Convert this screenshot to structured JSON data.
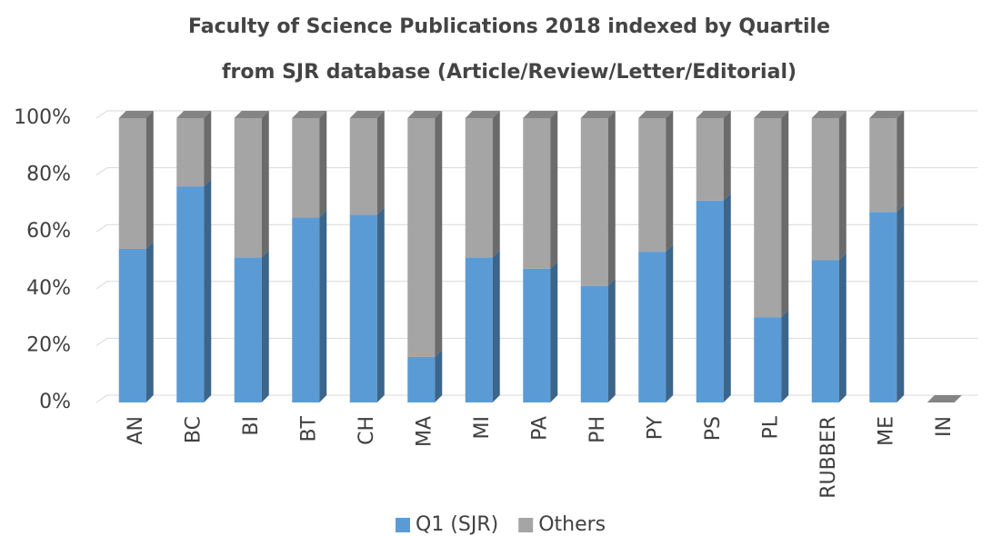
{
  "chart_data": {
    "type": "stacked_bar_3d",
    "title": "Faculty of Science Publications 2018 indexed by Quartile",
    "subtitle": "from SJR database (Article/Review/Letter/Editorial)",
    "categories": [
      "AN",
      "BC",
      "BI",
      "BT",
      "CH",
      "MA",
      "MI",
      "PA",
      "PH",
      "PY",
      "PS",
      "PL",
      "RUBBER",
      "ME",
      "IN"
    ],
    "series": [
      {
        "name": "Q1 (SJR)",
        "color": "#5b9bd5",
        "values": [
          54,
          76,
          51,
          65,
          66,
          16,
          51,
          47,
          41,
          53,
          71,
          30,
          50,
          67,
          0
        ]
      },
      {
        "name": "Others",
        "color": "#a5a5a5",
        "values": [
          46,
          24,
          49,
          35,
          34,
          84,
          49,
          53,
          59,
          47,
          29,
          70,
          50,
          33,
          0
        ]
      }
    ],
    "ylim": [
      0,
      100
    ],
    "yticks": [
      {
        "value": 0,
        "label": "0%"
      },
      {
        "value": 20,
        "label": "20%"
      },
      {
        "value": 40,
        "label": "40%"
      },
      {
        "value": 60,
        "label": "60%"
      },
      {
        "value": 80,
        "label": "80%"
      },
      {
        "value": 100,
        "label": "100%"
      }
    ],
    "grid": true,
    "legend": "bottom"
  }
}
